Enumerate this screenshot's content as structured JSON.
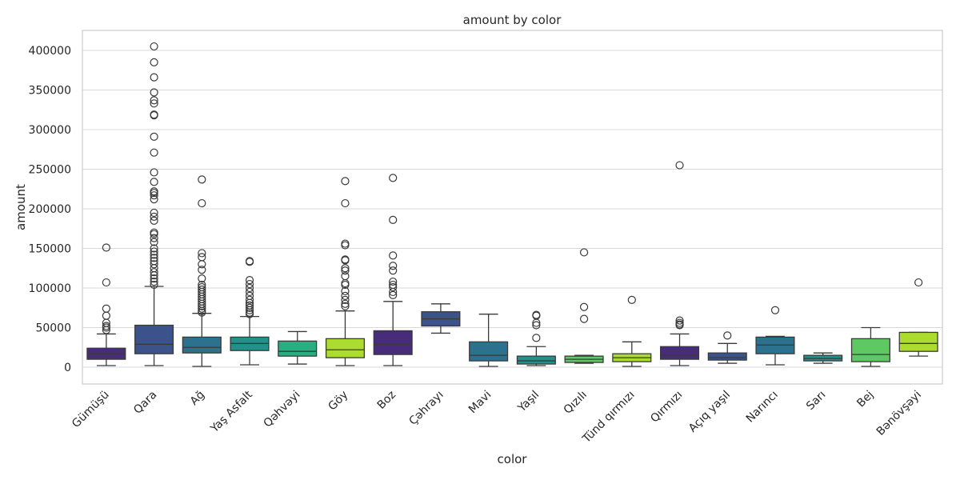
{
  "chart_data": {
    "type": "box",
    "title": "amount by color",
    "xlabel": "color",
    "ylabel": "amount",
    "ylim": [
      -20000,
      425000
    ],
    "yticks": [
      0,
      50000,
      100000,
      150000,
      200000,
      250000,
      300000,
      350000,
      400000
    ],
    "grid": true,
    "categories": [
      "Gümüşü",
      "Qara",
      "Ağ",
      "Yaş Asfalt",
      "Qəhvəyi",
      "Göy",
      "Boz",
      "Çəhrayı",
      "Mavi",
      "Yaşıl",
      "Qızılı",
      "Tünd qırmızı",
      "Qırmızı",
      "Açıq yaşıl",
      "Narıncı",
      "Sarı",
      "Bej",
      "Bənövşəyi"
    ],
    "colors": [
      "#472c7a",
      "#3b528b",
      "#2c728e",
      "#21918c",
      "#28ae80",
      "#addc30",
      "#472c7a",
      "#3b528b",
      "#2c728e",
      "#21918c",
      "#5ec962",
      "#addc30",
      "#472c7a",
      "#3b528b",
      "#2c728e",
      "#21918c",
      "#5ec962",
      "#addc30"
    ],
    "boxes": [
      {
        "whislo": 2000,
        "q1": 10000,
        "med": 17000,
        "q3": 24000,
        "whishi": 42000,
        "fliers": [
          151000,
          107000,
          74000,
          65000,
          56000,
          52000,
          50000,
          47000
        ]
      },
      {
        "whislo": 2000,
        "q1": 17000,
        "med": 29000,
        "q3": 53000,
        "whishi": 102000,
        "fliers": [
          405000,
          385000,
          366000,
          347000,
          337000,
          333000,
          319000,
          318000,
          291000,
          271000,
          246000,
          234000,
          222000,
          220000,
          217000,
          212000,
          195000,
          190000,
          185000,
          170000,
          168000,
          163000,
          158000,
          150000,
          146000,
          142000,
          138000,
          134000,
          130000,
          125000,
          120000,
          116000,
          112000,
          108000,
          104000
        ]
      },
      {
        "whislo": 1000,
        "q1": 18000,
        "med": 25000,
        "q3": 38000,
        "whishi": 68000,
        "fliers": [
          237000,
          207000,
          144000,
          139000,
          130000,
          123000,
          112000,
          104000,
          101000,
          98000,
          95000,
          92000,
          89000,
          86000,
          83000,
          80000,
          77000,
          74000,
          71000,
          69000
        ]
      },
      {
        "whislo": 3000,
        "q1": 21000,
        "med": 30000,
        "q3": 38000,
        "whishi": 64000,
        "fliers": [
          134000,
          133000,
          110000,
          105000,
          100000,
          95000,
          90000,
          85000,
          81000,
          78000,
          75000,
          72000,
          69000,
          67000
        ]
      },
      {
        "whislo": 4000,
        "q1": 14000,
        "med": 20000,
        "q3": 33000,
        "whishi": 45000,
        "fliers": []
      },
      {
        "whislo": 2000,
        "q1": 12000,
        "med": 22000,
        "q3": 36000,
        "whishi": 71000,
        "fliers": [
          235000,
          207000,
          156000,
          154000,
          136000,
          135000,
          125000,
          122000,
          115000,
          106000,
          104000,
          96000,
          90000,
          85000,
          80000,
          77000
        ]
      },
      {
        "whislo": 2000,
        "q1": 16000,
        "med": 29000,
        "q3": 46000,
        "whishi": 83000,
        "fliers": [
          239000,
          186000,
          141000,
          128000,
          122000,
          108000,
          104000,
          101000,
          95000,
          91000
        ]
      },
      {
        "whislo": 43000,
        "q1": 52000,
        "med": 61000,
        "q3": 70000,
        "whishi": 80000,
        "fliers": []
      },
      {
        "whislo": 1000,
        "q1": 8000,
        "med": 15000,
        "q3": 32000,
        "whishi": 67000,
        "fliers": []
      },
      {
        "whislo": 2000,
        "q1": 4000,
        "med": 8000,
        "q3": 14000,
        "whishi": 26000,
        "fliers": [
          66000,
          65000,
          56000,
          53000,
          37000
        ]
      },
      {
        "whislo": 5000,
        "q1": 6000,
        "med": 10000,
        "q3": 14000,
        "whishi": 15000,
        "fliers": [
          145000,
          76000,
          61000
        ]
      },
      {
        "whislo": 1000,
        "q1": 7000,
        "med": 12000,
        "q3": 17000,
        "whishi": 32000,
        "fliers": [
          85000
        ]
      },
      {
        "whislo": 2000,
        "q1": 10000,
        "med": 15000,
        "q3": 26000,
        "whishi": 42000,
        "fliers": [
          255000,
          59000,
          56000,
          54000,
          53000
        ]
      },
      {
        "whislo": 5000,
        "q1": 9000,
        "med": 12000,
        "q3": 18000,
        "whishi": 30000,
        "fliers": [
          40000
        ]
      },
      {
        "whislo": 3000,
        "q1": 17000,
        "med": 28000,
        "q3": 38000,
        "whishi": 39000,
        "fliers": [
          72000
        ]
      },
      {
        "whislo": 5000,
        "q1": 8000,
        "med": 11000,
        "q3": 15000,
        "whishi": 18000,
        "fliers": []
      },
      {
        "whislo": 1000,
        "q1": 7000,
        "med": 16000,
        "q3": 36000,
        "whishi": 50000,
        "fliers": []
      },
      {
        "whislo": 14000,
        "q1": 20000,
        "med": 30000,
        "q3": 44000,
        "whishi": 44000,
        "fliers": [
          107000
        ]
      }
    ]
  }
}
